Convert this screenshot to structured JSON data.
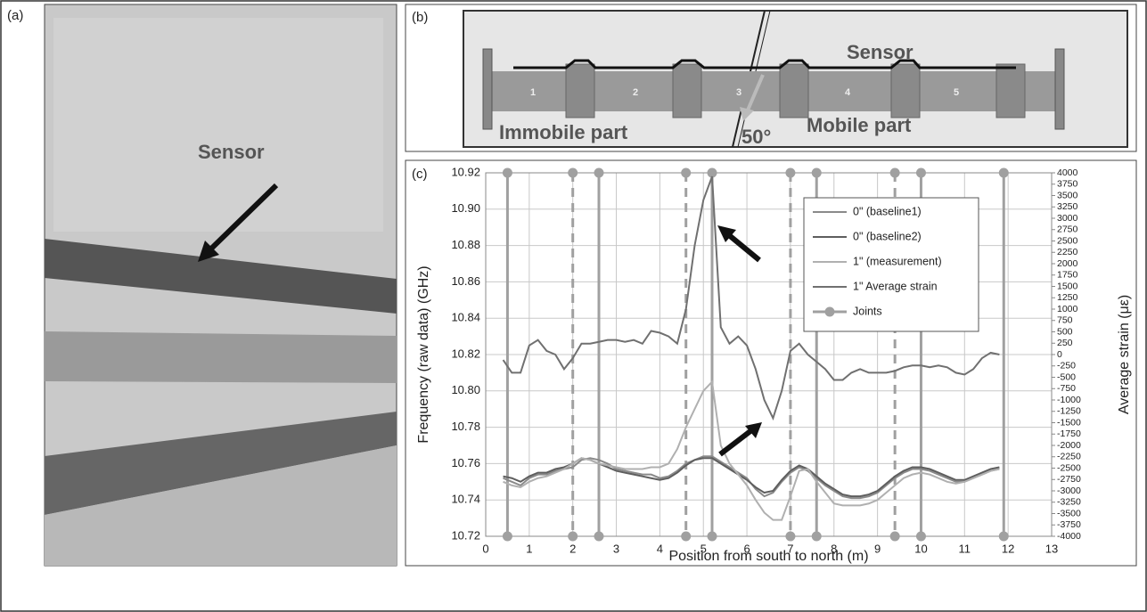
{
  "photo": {
    "label": "(a)",
    "text": "Sensor"
  },
  "diagram": {
    "label": "(b)",
    "sensor": "Sensor",
    "immobile": "Immobile part",
    "mobile": "Mobile part",
    "angle": "50°",
    "segments": [
      "1",
      "2",
      "3",
      "4",
      "5"
    ]
  },
  "chart_data": {
    "type": "line",
    "label": "(c)",
    "xlabel": "Position from south to north (m)",
    "ylabel": "Frequency (raw data) (GHz)",
    "y2label": "Average strain (με)",
    "xlim": [
      0,
      13
    ],
    "xticks": [
      0,
      1,
      2,
      3,
      4,
      5,
      6,
      7,
      8,
      9,
      10,
      11,
      12,
      13
    ],
    "ylim": [
      10.72,
      10.92
    ],
    "yticks": [
      10.72,
      10.74,
      10.76,
      10.78,
      {
        "value": 10.8,
        "label": "10.80"
      },
      10.82,
      10.84,
      10.86,
      10.88,
      {
        "value": 10.9,
        "label": "10.90"
      },
      10.92
    ],
    "y2lim": [
      -4000,
      4000
    ],
    "y2ticks": [
      -4000,
      -3750,
      -3500,
      -3250,
      -3000,
      -2750,
      -2500,
      -2250,
      -2000,
      -1750,
      -1500,
      -1250,
      -1000,
      -750,
      -500,
      -250,
      0,
      250,
      500,
      750,
      1000,
      1250,
      1500,
      1750,
      2000,
      2250,
      2500,
      2750,
      3000,
      3250,
      3500,
      3750,
      4000
    ],
    "grid": true,
    "x": [
      0.4,
      0.6,
      0.8,
      1.0,
      1.2,
      1.4,
      1.6,
      1.8,
      2.0,
      2.2,
      2.4,
      2.6,
      2.8,
      3.0,
      3.2,
      3.4,
      3.6,
      3.8,
      4.0,
      4.2,
      4.4,
      4.6,
      4.8,
      5.0,
      5.2,
      5.4,
      5.6,
      5.8,
      6.0,
      6.2,
      6.4,
      6.6,
      6.8,
      7.0,
      7.2,
      7.4,
      7.6,
      7.8,
      8.0,
      8.2,
      8.4,
      8.6,
      8.8,
      9.0,
      9.2,
      9.4,
      9.6,
      9.8,
      10.0,
      10.2,
      10.4,
      10.6,
      10.8,
      11.0,
      11.2,
      11.4,
      11.6,
      11.8
    ],
    "series": [
      {
        "name": "0\" (baseline1)",
        "color": "#8a8a8a",
        "values": [
          10.752,
          10.75,
          10.748,
          10.752,
          10.754,
          10.754,
          10.756,
          10.757,
          10.758,
          10.762,
          10.763,
          10.762,
          10.76,
          10.757,
          10.756,
          10.755,
          10.754,
          10.754,
          10.752,
          10.753,
          10.756,
          10.76,
          10.762,
          10.764,
          10.764,
          10.761,
          10.758,
          10.755,
          10.752,
          10.746,
          10.742,
          10.744,
          10.75,
          10.755,
          10.758,
          10.756,
          10.752,
          10.748,
          10.745,
          10.742,
          10.741,
          10.741,
          10.742,
          10.744,
          10.748,
          10.752,
          10.755,
          10.757,
          10.757,
          10.756,
          10.754,
          10.752,
          10.75,
          10.75,
          10.752,
          10.754,
          10.756,
          10.757
        ]
      },
      {
        "name": "0\" (baseline2)",
        "color": "#5e5e5e",
        "values": [
          10.753,
          10.752,
          10.75,
          10.753,
          10.755,
          10.755,
          10.757,
          10.758,
          10.76,
          10.763,
          10.762,
          10.76,
          10.758,
          10.756,
          10.755,
          10.754,
          10.753,
          10.752,
          10.751,
          10.752,
          10.755,
          10.759,
          10.762,
          10.763,
          10.763,
          10.76,
          10.757,
          10.754,
          10.751,
          10.747,
          10.744,
          10.745,
          10.751,
          10.756,
          10.759,
          10.757,
          10.753,
          10.749,
          10.746,
          10.743,
          10.742,
          10.742,
          10.743,
          10.745,
          10.749,
          10.753,
          10.756,
          10.758,
          10.758,
          10.757,
          10.755,
          10.753,
          10.751,
          10.751,
          10.753,
          10.755,
          10.757,
          10.758
        ]
      },
      {
        "name": "1\" (measurement)",
        "color": "#b0b0b0",
        "values": [
          10.75,
          10.748,
          10.747,
          10.75,
          10.752,
          10.753,
          10.755,
          10.757,
          10.76,
          10.763,
          10.762,
          10.76,
          10.759,
          10.758,
          10.757,
          10.757,
          10.757,
          10.758,
          10.758,
          10.76,
          10.768,
          10.78,
          10.79,
          10.8,
          10.805,
          10.77,
          10.76,
          10.754,
          10.748,
          10.74,
          10.733,
          10.729,
          10.729,
          10.742,
          10.756,
          10.757,
          10.75,
          10.744,
          10.738,
          10.737,
          10.737,
          10.737,
          10.738,
          10.74,
          10.744,
          10.748,
          10.752,
          10.754,
          10.755,
          10.754,
          10.752,
          10.75,
          10.749,
          10.75,
          10.752,
          10.754,
          10.756,
          10.757
        ]
      },
      {
        "name": "1\" Average strain",
        "color": "#707070",
        "axis": "y2",
        "values": [
          -120,
          -400,
          -400,
          200,
          320,
          80,
          0,
          -320,
          -80,
          240,
          240,
          280,
          320,
          320,
          280,
          320,
          240,
          520,
          480,
          400,
          240,
          1000,
          2400,
          3400,
          3920,
          600,
          240,
          400,
          200,
          -320,
          -1000,
          -1400,
          -800,
          80,
          240,
          0,
          -160,
          -320,
          -560,
          -560,
          -400,
          -320,
          -400,
          -400,
          -400,
          -360,
          -280,
          -240,
          -240,
          -280,
          -240,
          -280,
          -400,
          -440,
          -320,
          -80,
          40,
          0
        ]
      }
    ],
    "joints": {
      "name": "Joints",
      "color": "#a0a0a0",
      "solid_x": [
        0.5,
        2.6,
        5.2,
        7.6,
        10.0,
        11.9
      ],
      "dashed_x": [
        2.0,
        4.6,
        7.0,
        9.4
      ]
    }
  }
}
